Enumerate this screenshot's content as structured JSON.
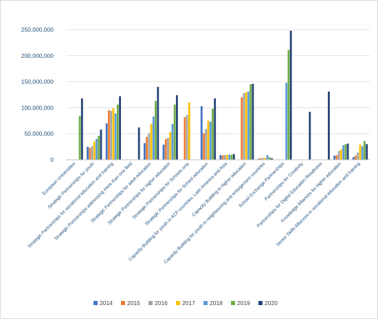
{
  "chart_data": {
    "type": "bar",
    "title": "",
    "xlabel": "",
    "ylabel": "",
    "ylim": [
      0,
      250000000
    ],
    "grid": true,
    "legend_position": "bottom",
    "yticks": [
      "0",
      "50,000,000",
      "100,000,000",
      "150,000,000",
      "200,000,000",
      "250,000,000"
    ],
    "categories": [
      "European Universities",
      "Strategic Partnerships for youth",
      "Strategic Partnerships for vocational education and training",
      "Strategic Partnerships addressing more than one field",
      "Strategic Partnerships for adult education",
      "Strategic Partnerships for higher education",
      "Strategic Partnerships for Schools only",
      "Strategic Partnerships for School education",
      "Capacity Building for youth in ACP countries, Latin America and Asia",
      "Capacity Building in higher education",
      "Capacity Building for youth in neighbouring and enlargement countries",
      "School Exchange Partnerships",
      "Partnerships for Creativity",
      "Partnerships for Digital Education Readiness",
      "Knowledge Alliances for higher education",
      "Sector Skills Alliances in vocational education and training"
    ],
    "series": [
      {
        "name": "2014",
        "color": "#4472c4",
        "values": [
          null,
          25000000,
          70000000,
          null,
          32000000,
          29000000,
          null,
          103000000,
          9000000,
          null,
          2000000,
          null,
          null,
          null,
          8000000,
          5000000
        ]
      },
      {
        "name": "2015",
        "color": "#ed7d31",
        "values": [
          null,
          23000000,
          95000000,
          null,
          44000000,
          40000000,
          82000000,
          51000000,
          8500000,
          120000000,
          3000000,
          null,
          null,
          null,
          9000000,
          8000000
        ]
      },
      {
        "name": "2016",
        "color": "#a5a5a5",
        "values": [
          null,
          26000000,
          94000000,
          null,
          51000000,
          42000000,
          86000000,
          59000000,
          9000000,
          128000000,
          3500000,
          null,
          null,
          null,
          17000000,
          14000000
        ]
      },
      {
        "name": "2017",
        "color": "#ffc000",
        "values": [
          null,
          35000000,
          99000000,
          null,
          69000000,
          53000000,
          110000000,
          75000000,
          9500000,
          130000000,
          4000000,
          null,
          null,
          null,
          20000000,
          29000000
        ]
      },
      {
        "name": "2018",
        "color": "#5b9bd5",
        "values": [
          null,
          40000000,
          89000000,
          null,
          83000000,
          69000000,
          null,
          73000000,
          10000000,
          131000000,
          9000000,
          148000000,
          null,
          null,
          28000000,
          26000000
        ]
      },
      {
        "name": "2019",
        "color": "#70ad47",
        "values": [
          84000000,
          46000000,
          106000000,
          null,
          113000000,
          106000000,
          null,
          98000000,
          9500000,
          145000000,
          5000000,
          211000000,
          null,
          null,
          30000000,
          36000000
        ]
      },
      {
        "name": "2020",
        "color": "#264478",
        "values": [
          118000000,
          58000000,
          122000000,
          62000000,
          140000000,
          124000000,
          null,
          118000000,
          11000000,
          146000000,
          3000000,
          248000000,
          92000000,
          131000000,
          31000000,
          30000000
        ]
      }
    ]
  }
}
